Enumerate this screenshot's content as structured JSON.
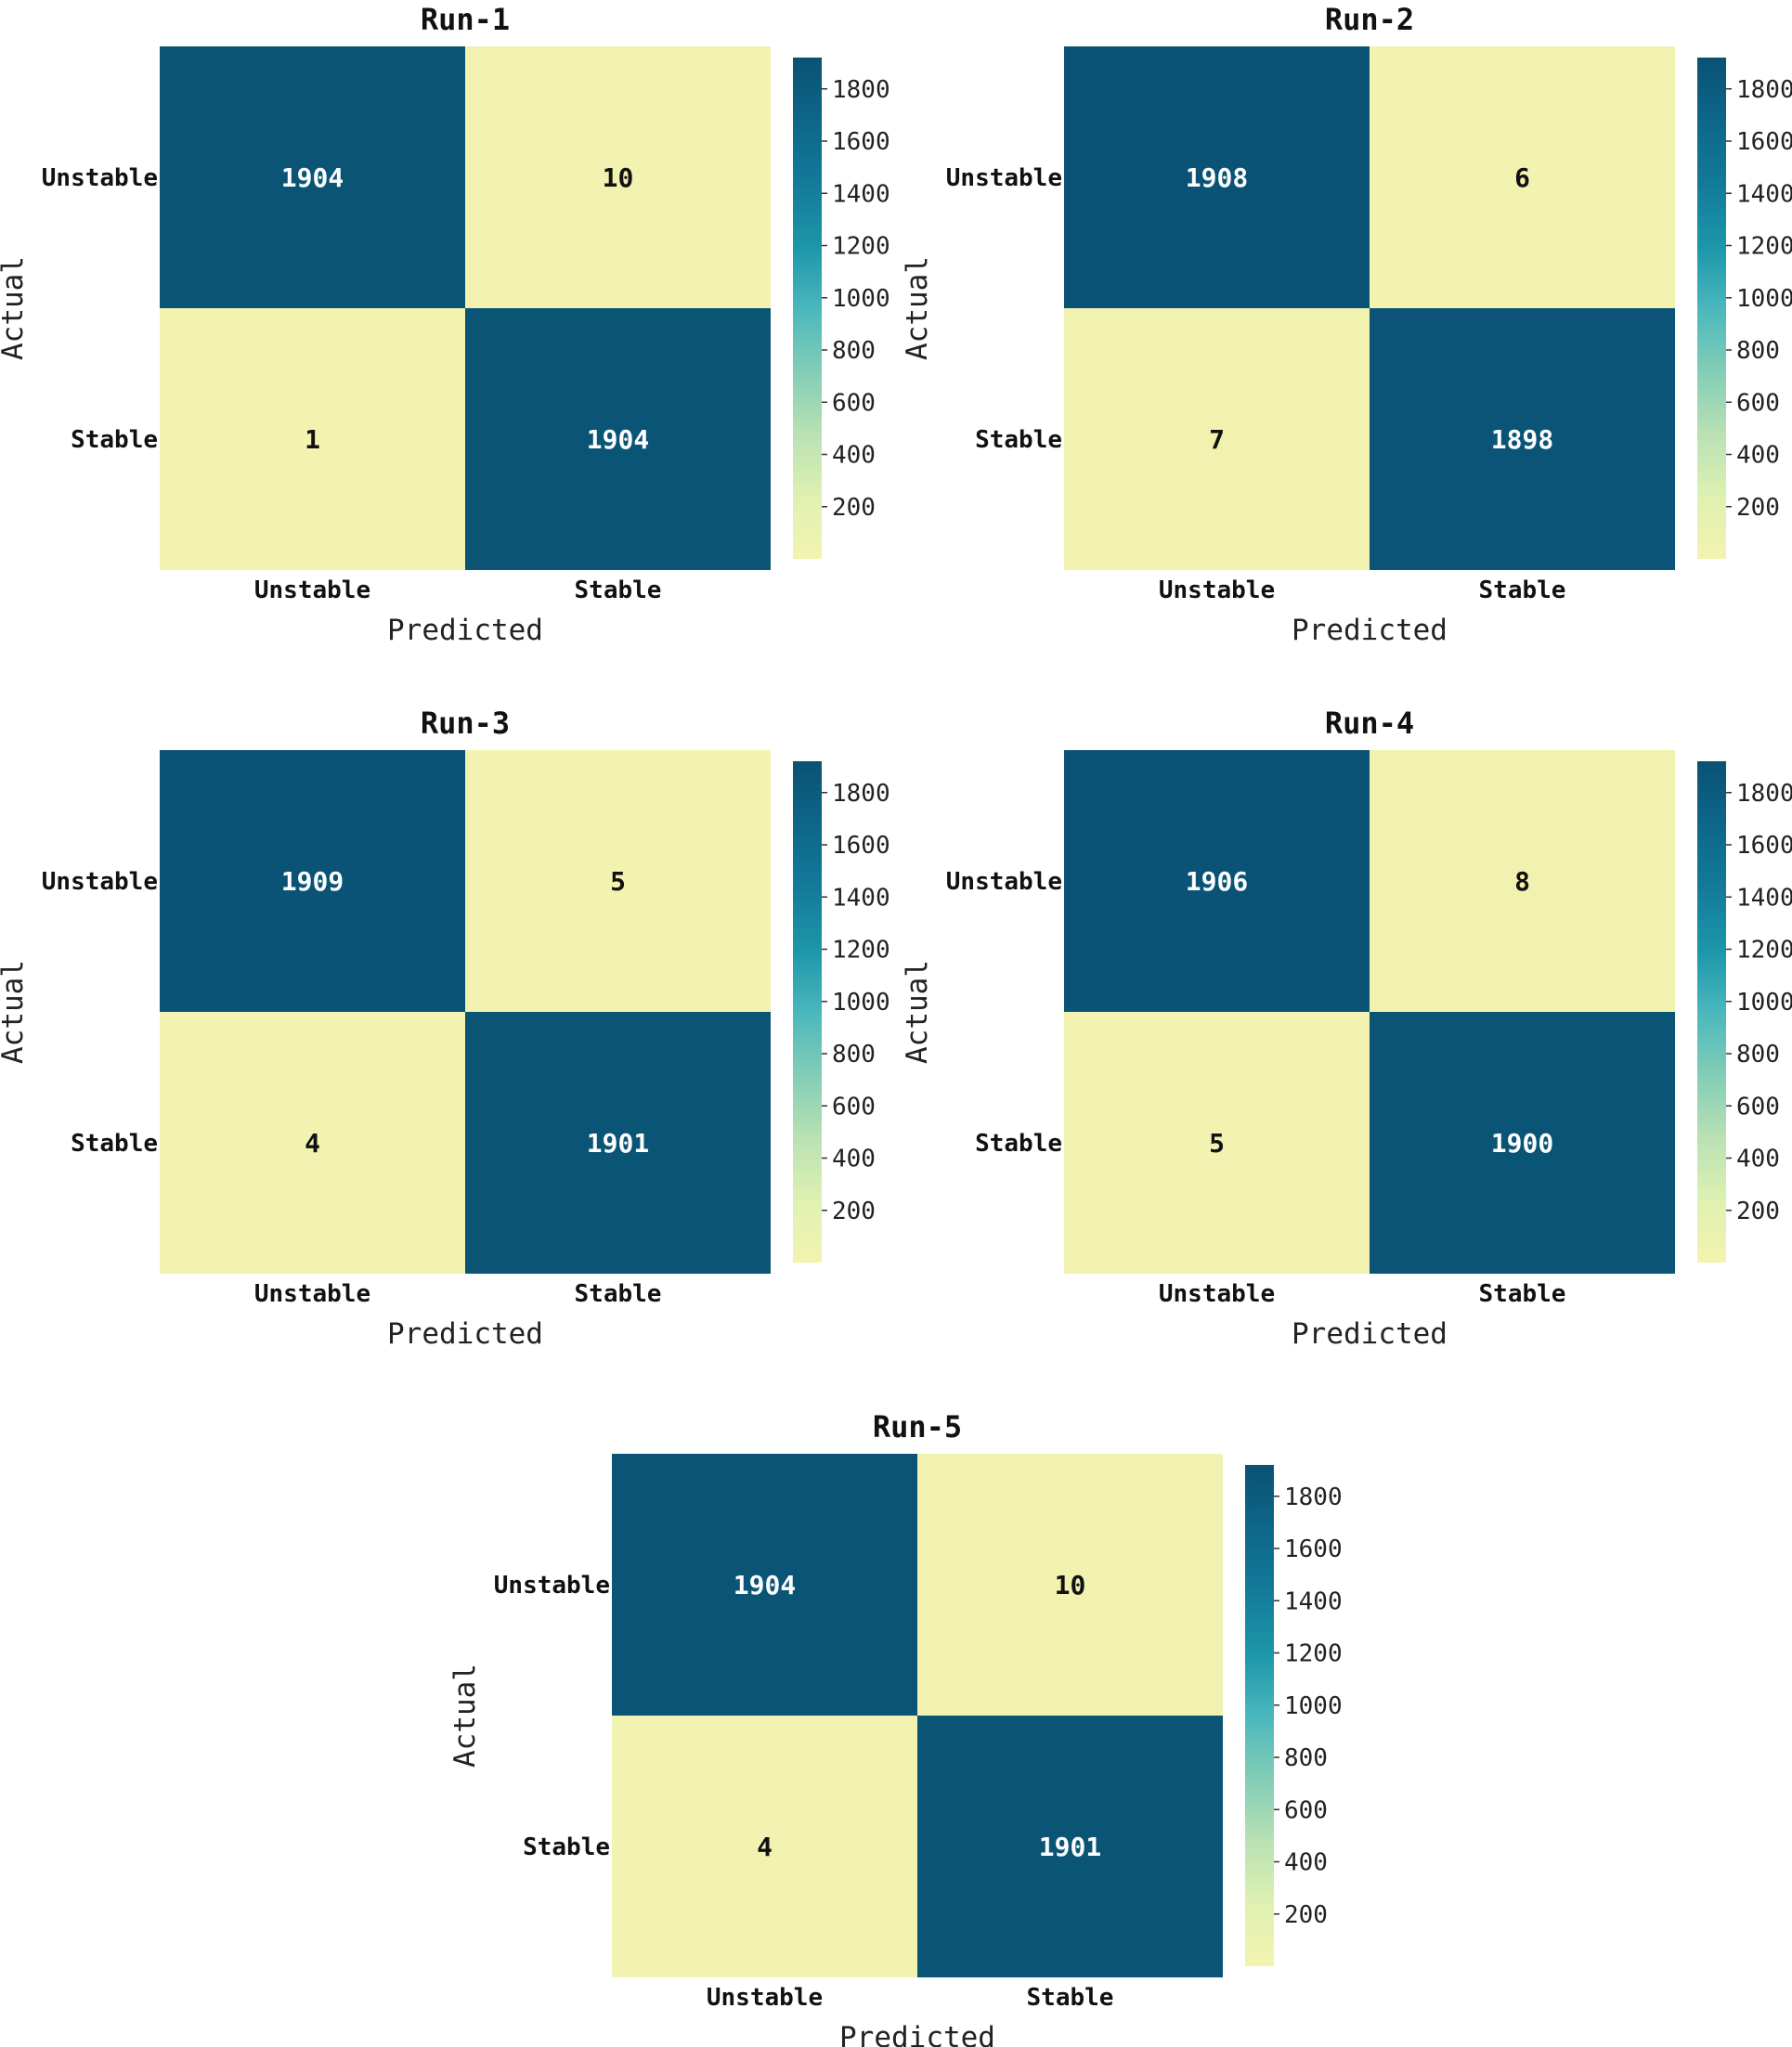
{
  "chart_data": [
    {
      "type": "heatmap",
      "title": "Run-1",
      "xlabel": "Predicted",
      "ylabel": "Actual",
      "x_categories": [
        "Unstable",
        "Stable"
      ],
      "y_categories": [
        "Unstable",
        "Stable"
      ],
      "values": [
        [
          1904,
          10
        ],
        [
          1,
          1904
        ]
      ],
      "colorbar": {
        "range": [
          0,
          1920
        ],
        "ticks": [
          200,
          400,
          600,
          800,
          1000,
          1200,
          1400,
          1600,
          1800
        ]
      }
    },
    {
      "type": "heatmap",
      "title": "Run-2",
      "xlabel": "Predicted",
      "ylabel": "Actual",
      "x_categories": [
        "Unstable",
        "Stable"
      ],
      "y_categories": [
        "Unstable",
        "Stable"
      ],
      "values": [
        [
          1908,
          6
        ],
        [
          7,
          1898
        ]
      ],
      "colorbar": {
        "range": [
          0,
          1920
        ],
        "ticks": [
          200,
          400,
          600,
          800,
          1000,
          1200,
          1400,
          1600,
          1800
        ]
      }
    },
    {
      "type": "heatmap",
      "title": "Run-3",
      "xlabel": "Predicted",
      "ylabel": "Actual",
      "x_categories": [
        "Unstable",
        "Stable"
      ],
      "y_categories": [
        "Unstable",
        "Stable"
      ],
      "values": [
        [
          1909,
          5
        ],
        [
          4,
          1901
        ]
      ],
      "colorbar": {
        "range": [
          0,
          1920
        ],
        "ticks": [
          200,
          400,
          600,
          800,
          1000,
          1200,
          1400,
          1600,
          1800
        ]
      }
    },
    {
      "type": "heatmap",
      "title": "Run-4",
      "xlabel": "Predicted",
      "ylabel": "Actual",
      "x_categories": [
        "Unstable",
        "Stable"
      ],
      "y_categories": [
        "Unstable",
        "Stable"
      ],
      "values": [
        [
          1906,
          8
        ],
        [
          5,
          1900
        ]
      ],
      "colorbar": {
        "range": [
          0,
          1920
        ],
        "ticks": [
          200,
          400,
          600,
          800,
          1000,
          1200,
          1400,
          1600,
          1800
        ]
      }
    },
    {
      "type": "heatmap",
      "title": "Run-5",
      "xlabel": "Predicted",
      "ylabel": "Actual",
      "x_categories": [
        "Unstable",
        "Stable"
      ],
      "y_categories": [
        "Unstable",
        "Stable"
      ],
      "values": [
        [
          1904,
          10
        ],
        [
          4,
          1901
        ]
      ],
      "colorbar": {
        "range": [
          0,
          1920
        ],
        "ticks": [
          200,
          400,
          600,
          800,
          1000,
          1200,
          1400,
          1600,
          1800
        ]
      }
    }
  ],
  "colors": {
    "high": "#0a5275",
    "mid": "#1c97a9",
    "low": "#f3f3b0",
    "text_on_dark": "#ffffff",
    "text_on_light": "#111111"
  }
}
